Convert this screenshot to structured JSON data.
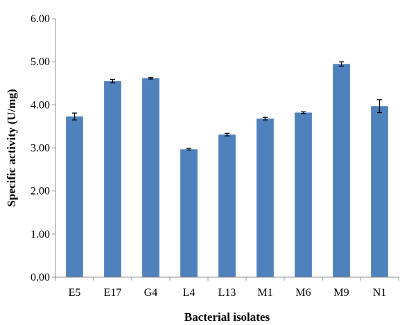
{
  "chart_data": {
    "type": "bar",
    "categories": [
      "E5",
      "E17",
      "G4",
      "L4",
      "L13",
      "M1",
      "M6",
      "M9",
      "N1"
    ],
    "values": [
      3.73,
      4.55,
      4.62,
      2.97,
      3.31,
      3.68,
      3.82,
      4.95,
      3.97
    ],
    "errors": [
      0.08,
      0.04,
      0.02,
      0.02,
      0.03,
      0.03,
      0.02,
      0.05,
      0.15
    ],
    "xlabel": "Bacterial isolates",
    "ylabel": "Specific activity (U/mg)",
    "ylim": [
      0,
      6
    ],
    "yticks": [
      "0.00",
      "1.00",
      "2.00",
      "3.00",
      "4.00",
      "5.00",
      "6.00"
    ],
    "grid": false,
    "bar_color": "#4f81bd"
  }
}
